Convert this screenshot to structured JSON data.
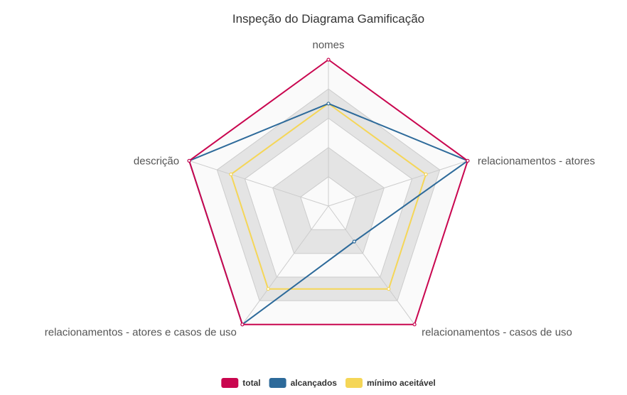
{
  "chart_data": {
    "type": "radar",
    "title": "Inspeção do Diagrama Gamificação",
    "axes": [
      "nomes",
      "relacionamentos - atores",
      "relacionamentos - casos de uso",
      "relacionamentos - atores e casos de uso",
      "descrição"
    ],
    "range": [
      0,
      100
    ],
    "grid_levels": 5,
    "series": [
      {
        "name": "total",
        "color": "#c9064f",
        "values": [
          100,
          100,
          100,
          100,
          100
        ]
      },
      {
        "name": "alcançados",
        "color": "#2d6a9a",
        "values": [
          70,
          100,
          30,
          100,
          100
        ]
      },
      {
        "name": "mínimo aceitável",
        "color": "#f5d657",
        "values": [
          70,
          70,
          70,
          70,
          70
        ]
      }
    ],
    "legend_position": "bottom-center"
  }
}
